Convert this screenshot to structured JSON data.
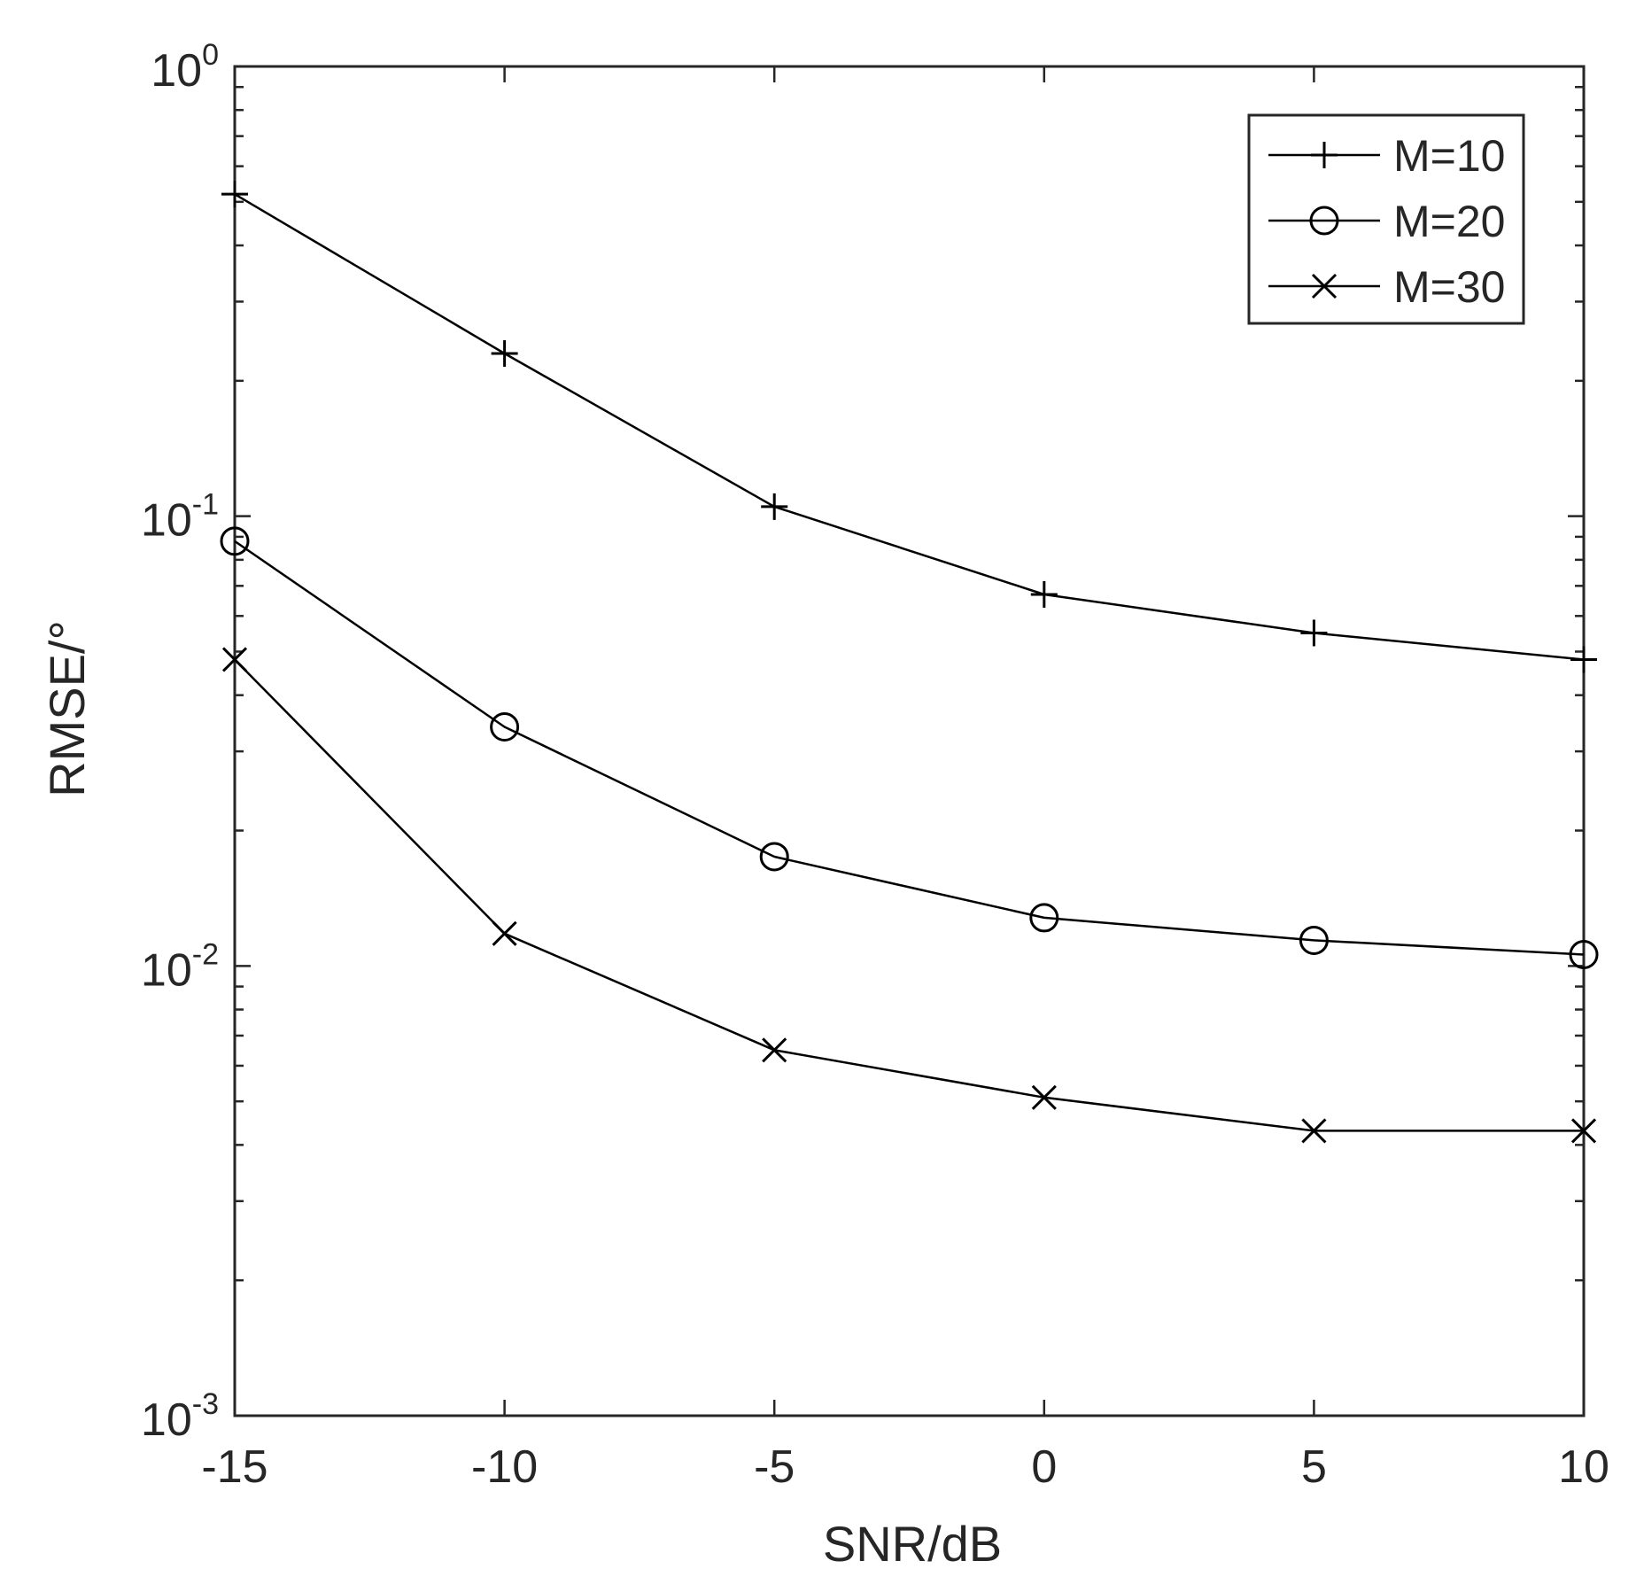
{
  "chart_data": {
    "type": "line",
    "xlabel": "SNR/dB",
    "ylabel": "RMSE/°",
    "xlim": [
      -15,
      10
    ],
    "ylim": [
      0.001,
      1
    ],
    "yscale": "log",
    "grid": false,
    "legend_position": "top-right",
    "x": [
      -15,
      -10,
      -5,
      0,
      5,
      10
    ],
    "x_tick_labels": [
      "-15",
      "-10",
      "-5",
      "0",
      "5",
      "10"
    ],
    "y_ticks": [
      {
        "value": 0.001,
        "base": "10",
        "exponent": "-3"
      },
      {
        "value": 0.01,
        "base": "10",
        "exponent": "-2"
      },
      {
        "value": 0.1,
        "base": "10",
        "exponent": "-1"
      },
      {
        "value": 1,
        "base": "10",
        "exponent": "0"
      }
    ],
    "series": [
      {
        "name": "M=10",
        "marker": "plus",
        "values": [
          0.52,
          0.23,
          0.105,
          0.067,
          0.055,
          0.048
        ]
      },
      {
        "name": "M=20",
        "marker": "circle",
        "values": [
          0.088,
          0.034,
          0.0175,
          0.0128,
          0.0114,
          0.0106
        ]
      },
      {
        "name": "M=30",
        "marker": "cross",
        "values": [
          0.048,
          0.0118,
          0.0065,
          0.0051,
          0.0043,
          0.0043
        ]
      }
    ],
    "colors": {
      "line": "#000000",
      "axes": "#262626",
      "background": "#ffffff"
    }
  }
}
